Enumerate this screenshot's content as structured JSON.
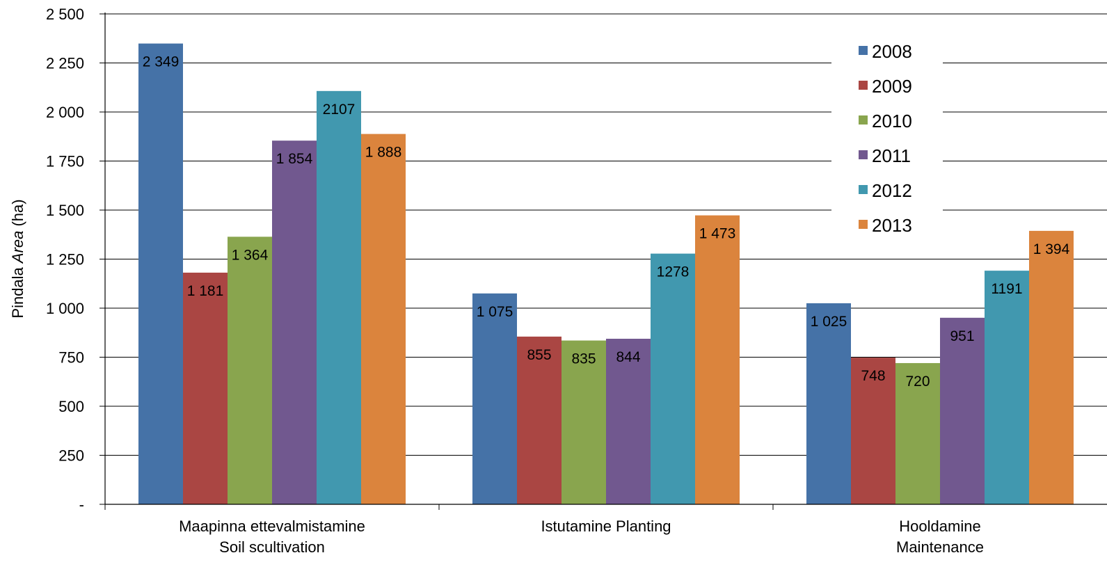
{
  "chart_data": {
    "type": "bar",
    "title": "",
    "ylabel": {
      "main": "Pindala",
      "italic": "Area",
      "unit": "(ha)"
    },
    "xlabel": "",
    "ylim": [
      0,
      2500
    ],
    "yticks": [
      0,
      250,
      500,
      750,
      1000,
      1250,
      1500,
      1750,
      2000,
      2250,
      2500
    ],
    "ytick_labels": [
      "-",
      "250",
      "500",
      "750",
      "1 000",
      "1 250",
      "1 500",
      "1 750",
      "2 000",
      "2 250",
      "2 500"
    ],
    "grid": true,
    "legend_position": "top-right",
    "categories": [
      {
        "line1": "Maapinna ettevalmistamine",
        "line2": "Soil scultivation"
      },
      {
        "line1": "Istutamine Planting",
        "line2": ""
      },
      {
        "line1": "Hooldamine",
        "line2": "Maintenance"
      }
    ],
    "series": [
      {
        "name": "2008",
        "color": "#4572A7",
        "values": [
          2349,
          1075,
          1025
        ],
        "labels": [
          "2 349",
          "1 075",
          "1 025"
        ]
      },
      {
        "name": "2009",
        "color": "#AA4643",
        "values": [
          1181,
          855,
          748
        ],
        "labels": [
          "1 181",
          "855",
          "748"
        ]
      },
      {
        "name": "2010",
        "color": "#89A54E",
        "values": [
          1364,
          835,
          720
        ],
        "labels": [
          "1 364",
          "835",
          "720"
        ]
      },
      {
        "name": "2011",
        "color": "#71588F",
        "values": [
          1854,
          844,
          951
        ],
        "labels": [
          "1 854",
          "844",
          "951"
        ]
      },
      {
        "name": "2012",
        "color": "#4198AF",
        "values": [
          2107,
          1278,
          1191
        ],
        "labels": [
          "2107",
          "1278",
          "1191"
        ]
      },
      {
        "name": "2013",
        "color": "#DB843D",
        "values": [
          1888,
          1473,
          1394
        ],
        "labels": [
          "1 888",
          "1 473",
          "1 394"
        ]
      }
    ]
  }
}
